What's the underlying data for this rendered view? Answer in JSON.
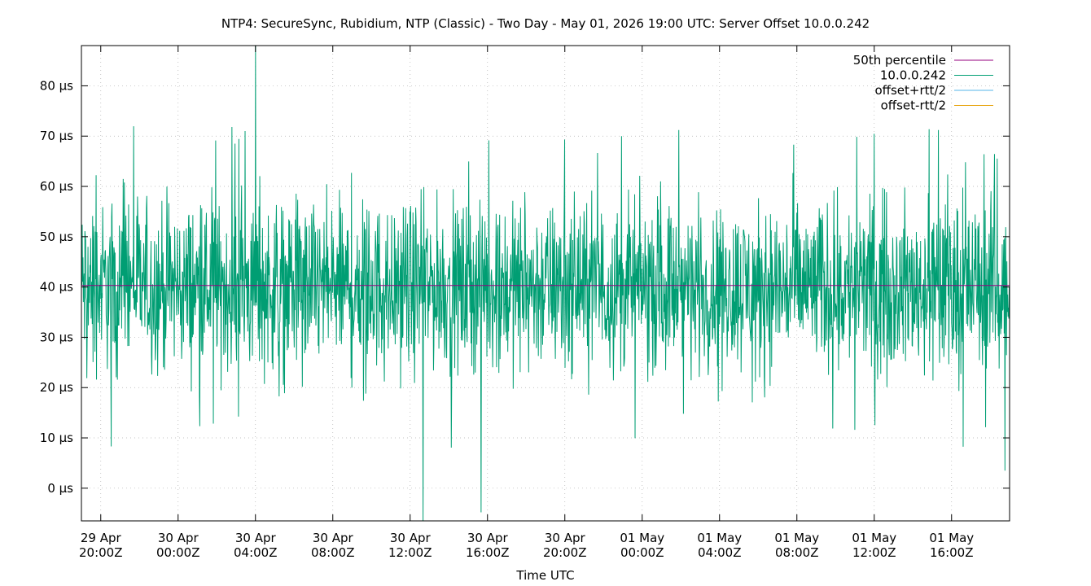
{
  "chart_data": {
    "type": "line",
    "title": "NTP4: SecureSync, Rubidium, NTP (Classic) - Two Day - May 01, 2026 19:00 UTC: Server Offset 10.0.0.242",
    "xlabel": "Time UTC",
    "ylabel": "",
    "y_unit": "µs",
    "xlim": [
      "2026-04-29T19:00Z",
      "2026-05-01T19:00Z"
    ],
    "ylim": [
      -6.5,
      88
    ],
    "grid": true,
    "legend_position": "top-right",
    "y_ticks": [
      {
        "value": 0,
        "label": "0 µs"
      },
      {
        "value": 10,
        "label": "10 µs"
      },
      {
        "value": 20,
        "label": "20 µs"
      },
      {
        "value": 30,
        "label": "30 µs"
      },
      {
        "value": 40,
        "label": "40 µs"
      },
      {
        "value": 50,
        "label": "50 µs"
      },
      {
        "value": 60,
        "label": "60 µs"
      },
      {
        "value": 70,
        "label": "70 µs"
      },
      {
        "value": 80,
        "label": "80 µs"
      }
    ],
    "x_ticks": [
      {
        "value": "2026-04-29T20:00Z",
        "line1": "29 Apr",
        "line2": "20:00Z"
      },
      {
        "value": "2026-04-30T00:00Z",
        "line1": "30 Apr",
        "line2": "00:00Z"
      },
      {
        "value": "2026-04-30T04:00Z",
        "line1": "30 Apr",
        "line2": "04:00Z"
      },
      {
        "value": "2026-04-30T08:00Z",
        "line1": "30 Apr",
        "line2": "08:00Z"
      },
      {
        "value": "2026-04-30T12:00Z",
        "line1": "30 Apr",
        "line2": "12:00Z"
      },
      {
        "value": "2026-04-30T16:00Z",
        "line1": "30 Apr",
        "line2": "16:00Z"
      },
      {
        "value": "2026-04-30T20:00Z",
        "line1": "30 Apr",
        "line2": "20:00Z"
      },
      {
        "value": "2026-05-01T00:00Z",
        "line1": "01 May",
        "line2": "00:00Z"
      },
      {
        "value": "2026-05-01T04:00Z",
        "line1": "01 May",
        "line2": "04:00Z"
      },
      {
        "value": "2026-05-01T08:00Z",
        "line1": "01 May",
        "line2": "08:00Z"
      },
      {
        "value": "2026-05-01T12:00Z",
        "line1": "01 May",
        "line2": "12:00Z"
      },
      {
        "value": "2026-05-01T16:00Z",
        "line1": "01 May",
        "line2": "16:00Z"
      }
    ],
    "series": [
      {
        "name": "50th percentile",
        "color": "#94007f",
        "kind": "constant",
        "value": 40.3
      },
      {
        "name": "10.0.0.242",
        "color": "#009e73",
        "kind": "offset",
        "approx_mean": 40,
        "approx_spread": 8,
        "spikes": [
          {
            "time": "2026-04-30T04:00Z",
            "value": 88
          },
          {
            "time": "2026-04-30T12:40Z",
            "value": -6.5
          },
          {
            "time": "2026-04-30T15:40Z",
            "value": -4.8
          },
          {
            "time": "2026-04-30T20:00Z",
            "value": 69.3
          },
          {
            "time": "2026-05-01T07:50Z",
            "value": 68.3
          },
          {
            "time": "2026-05-01T18:45Z",
            "value": 3.5
          }
        ]
      },
      {
        "name": "offset+rtt/2",
        "color": "#56b4e9",
        "kind": "none"
      },
      {
        "name": "offset-rtt/2",
        "color": "#e69f00",
        "kind": "none"
      }
    ]
  }
}
